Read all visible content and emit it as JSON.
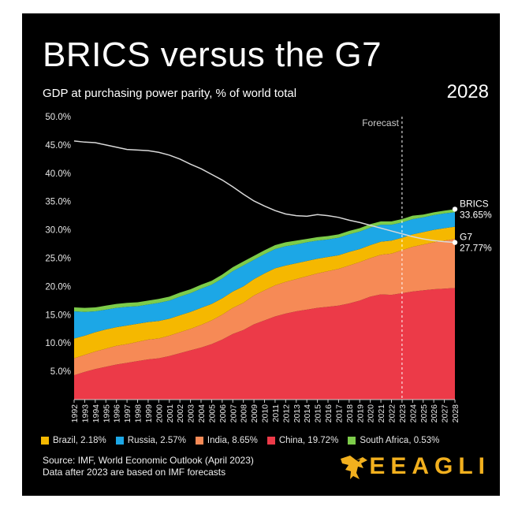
{
  "header": {
    "title": "BRICS versus the G7",
    "subtitle": "GDP at purchasing power parity, % of world total",
    "year": "2028"
  },
  "source": {
    "line1": "Source: IMF, World Economic Outlook (April 2023)",
    "line2": "Data after 2023 are based on IMF forecasts"
  },
  "brand": {
    "name": "EEAGLI",
    "icon": "eagle-icon"
  },
  "colors": {
    "background": "#000000",
    "Brazil": "#f5b800",
    "Russia": "#1ca7e6",
    "India": "#f68a56",
    "China": "#ec3a48",
    "South Africa": "#7dcc4a",
    "G7": "#d9d9d9",
    "brand": "#f2b01e"
  },
  "legend": [
    {
      "label": "Brazil, 2.18%",
      "color": "#f5b800"
    },
    {
      "label": "Russia, 2.57%",
      "color": "#1ca7e6"
    },
    {
      "label": "India, 8.65%",
      "color": "#f68a56"
    },
    {
      "label": "China, 19.72%",
      "color": "#ec3a48"
    },
    {
      "label": "South Africa, 0.53%",
      "color": "#7dcc4a"
    }
  ],
  "chart_data": {
    "type": "area",
    "stacked": true,
    "x": [
      1992,
      1993,
      1994,
      1995,
      1996,
      1997,
      1998,
      1999,
      2000,
      2001,
      2002,
      2003,
      2004,
      2005,
      2006,
      2007,
      2008,
      2009,
      2010,
      2011,
      2012,
      2013,
      2014,
      2015,
      2016,
      2017,
      2018,
      2019,
      2020,
      2021,
      2022,
      2023,
      2024,
      2025,
      2026,
      2027,
      2028
    ],
    "xticklabels": [
      "1992",
      "1993",
      "1994",
      "1995",
      "1996",
      "1997",
      "1998",
      "1999",
      "2000",
      "2001",
      "2002",
      "2003",
      "2004",
      "2005",
      "2006",
      "2007",
      "2008",
      "2009",
      "2010",
      "2011",
      "2012",
      "2013",
      "2014",
      "2015",
      "2016",
      "2017",
      "2018",
      "2019",
      "2020",
      "2021",
      "2022",
      "2023",
      "2024",
      "2025",
      "2026",
      "2027",
      "2028"
    ],
    "ylim": [
      0,
      50
    ],
    "yticks": [
      5,
      10,
      15,
      20,
      25,
      30,
      35,
      40,
      45,
      50
    ],
    "yticklabels": [
      "5.0%",
      "10.0%",
      "15.0%",
      "20.0%",
      "25.0%",
      "30.0%",
      "35.0%",
      "40.0%",
      "45.0%",
      "50.0%"
    ],
    "grid": false,
    "forecast_start": 2023,
    "forecast_label": "Forecast",
    "series": [
      {
        "name": "China",
        "values": [
          4.3,
          4.9,
          5.4,
          5.8,
          6.2,
          6.5,
          6.8,
          7.1,
          7.3,
          7.7,
          8.2,
          8.7,
          9.2,
          9.8,
          10.6,
          11.6,
          12.3,
          13.3,
          14.0,
          14.7,
          15.2,
          15.6,
          15.9,
          16.2,
          16.4,
          16.6,
          17.0,
          17.5,
          18.2,
          18.6,
          18.5,
          18.8,
          19.1,
          19.3,
          19.5,
          19.6,
          19.72
        ]
      },
      {
        "name": "India",
        "values": [
          3.0,
          3.0,
          3.1,
          3.2,
          3.3,
          3.3,
          3.4,
          3.5,
          3.5,
          3.6,
          3.7,
          3.8,
          4.0,
          4.2,
          4.4,
          4.6,
          4.8,
          5.1,
          5.3,
          5.5,
          5.6,
          5.7,
          5.9,
          6.1,
          6.3,
          6.5,
          6.7,
          6.8,
          6.8,
          7.0,
          7.3,
          7.6,
          7.9,
          8.1,
          8.3,
          8.5,
          8.65
        ]
      },
      {
        "name": "Brazil",
        "values": [
          3.5,
          3.4,
          3.4,
          3.4,
          3.3,
          3.3,
          3.2,
          3.1,
          3.1,
          3.0,
          3.0,
          3.0,
          3.0,
          2.9,
          2.9,
          2.9,
          2.9,
          2.9,
          3.0,
          3.0,
          2.9,
          2.8,
          2.7,
          2.6,
          2.5,
          2.4,
          2.4,
          2.3,
          2.3,
          2.3,
          2.3,
          2.2,
          2.2,
          2.2,
          2.2,
          2.2,
          2.18
        ]
      },
      {
        "name": "Russia",
        "values": [
          4.8,
          4.2,
          3.7,
          3.5,
          3.4,
          3.3,
          3.1,
          3.1,
          3.2,
          3.2,
          3.3,
          3.3,
          3.4,
          3.4,
          3.5,
          3.6,
          3.7,
          3.4,
          3.4,
          3.4,
          3.4,
          3.3,
          3.3,
          3.2,
          3.1,
          3.1,
          3.1,
          3.1,
          3.1,
          3.0,
          2.8,
          2.7,
          2.7,
          2.6,
          2.6,
          2.6,
          2.57
        ]
      },
      {
        "name": "South Africa",
        "values": [
          0.7,
          0.7,
          0.7,
          0.7,
          0.7,
          0.7,
          0.7,
          0.7,
          0.7,
          0.7,
          0.7,
          0.7,
          0.7,
          0.7,
          0.7,
          0.7,
          0.7,
          0.7,
          0.7,
          0.7,
          0.7,
          0.7,
          0.6,
          0.6,
          0.6,
          0.6,
          0.6,
          0.6,
          0.6,
          0.6,
          0.6,
          0.6,
          0.6,
          0.5,
          0.5,
          0.5,
          0.53
        ]
      }
    ],
    "lines": [
      {
        "name": "G7",
        "values": [
          45.7,
          45.5,
          45.4,
          45.0,
          44.6,
          44.2,
          44.1,
          44.0,
          43.7,
          43.2,
          42.5,
          41.6,
          40.8,
          39.8,
          38.8,
          37.6,
          36.3,
          35.1,
          34.2,
          33.4,
          32.8,
          32.5,
          32.4,
          32.7,
          32.5,
          32.2,
          31.7,
          31.3,
          30.8,
          30.3,
          29.8,
          29.3,
          28.8,
          28.4,
          28.1,
          27.9,
          27.77
        ]
      }
    ],
    "end_labels": [
      {
        "series": "BRICS",
        "name": "BRICS",
        "value": "33.65%"
      },
      {
        "series": "G7",
        "name": "G7",
        "value": "27.77%"
      }
    ]
  }
}
